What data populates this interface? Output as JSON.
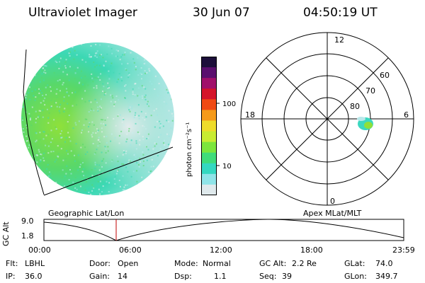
{
  "header": {
    "title": "Ultraviolet Imager",
    "date": "30 Jun 07",
    "time": "04:50:19 UT"
  },
  "colorbar": {
    "unit_label": "photon cm⁻²s⁻¹",
    "ticks": [
      "100",
      "10"
    ],
    "colors": [
      "#1c0f3a",
      "#5a0f6e",
      "#a0106a",
      "#d4142a",
      "#f04a14",
      "#f59a1a",
      "#eedc2a",
      "#c8ec32",
      "#7ce63c",
      "#3fdc7a",
      "#34d8c0",
      "#8fe4e8",
      "#dfe9ec"
    ]
  },
  "polar": {
    "mlt_labels": [
      "12",
      "18",
      "6",
      "0"
    ],
    "lat_labels": [
      "60",
      "70",
      "80"
    ]
  },
  "timeline": {
    "left_title": "Geographic Lat/Lon",
    "right_title": "Apex MLat/MLT",
    "y_axis_title": "GC Alt",
    "y_top": "9.0",
    "y_bottom": "1.8",
    "x_ticks": [
      "00:00",
      "06:00",
      "12:00",
      "18:00",
      "23:59"
    ],
    "marker_time": "04:50",
    "marker_color": "#c00000"
  },
  "status": {
    "flt_label": "Flt:",
    "flt_value": "LBHL",
    "ip_label": "IP:",
    "ip_value": "36.0",
    "door_label": "Door:",
    "door_value": "Open",
    "gain_label": "Gain:",
    "gain_value": "14",
    "mode_label": "Mode:",
    "mode_value": "Normal",
    "dsp_label": "Dsp:",
    "dsp_value": "1.1",
    "gcalt_label": "GC Alt:",
    "gcalt_value": "2.2 Re",
    "seq_label": "Seq:",
    "seq_value": "39",
    "glat_label": "GLat:",
    "glat_value": "74.0",
    "glon_label": "GLon:",
    "glon_value": "349.7"
  }
}
